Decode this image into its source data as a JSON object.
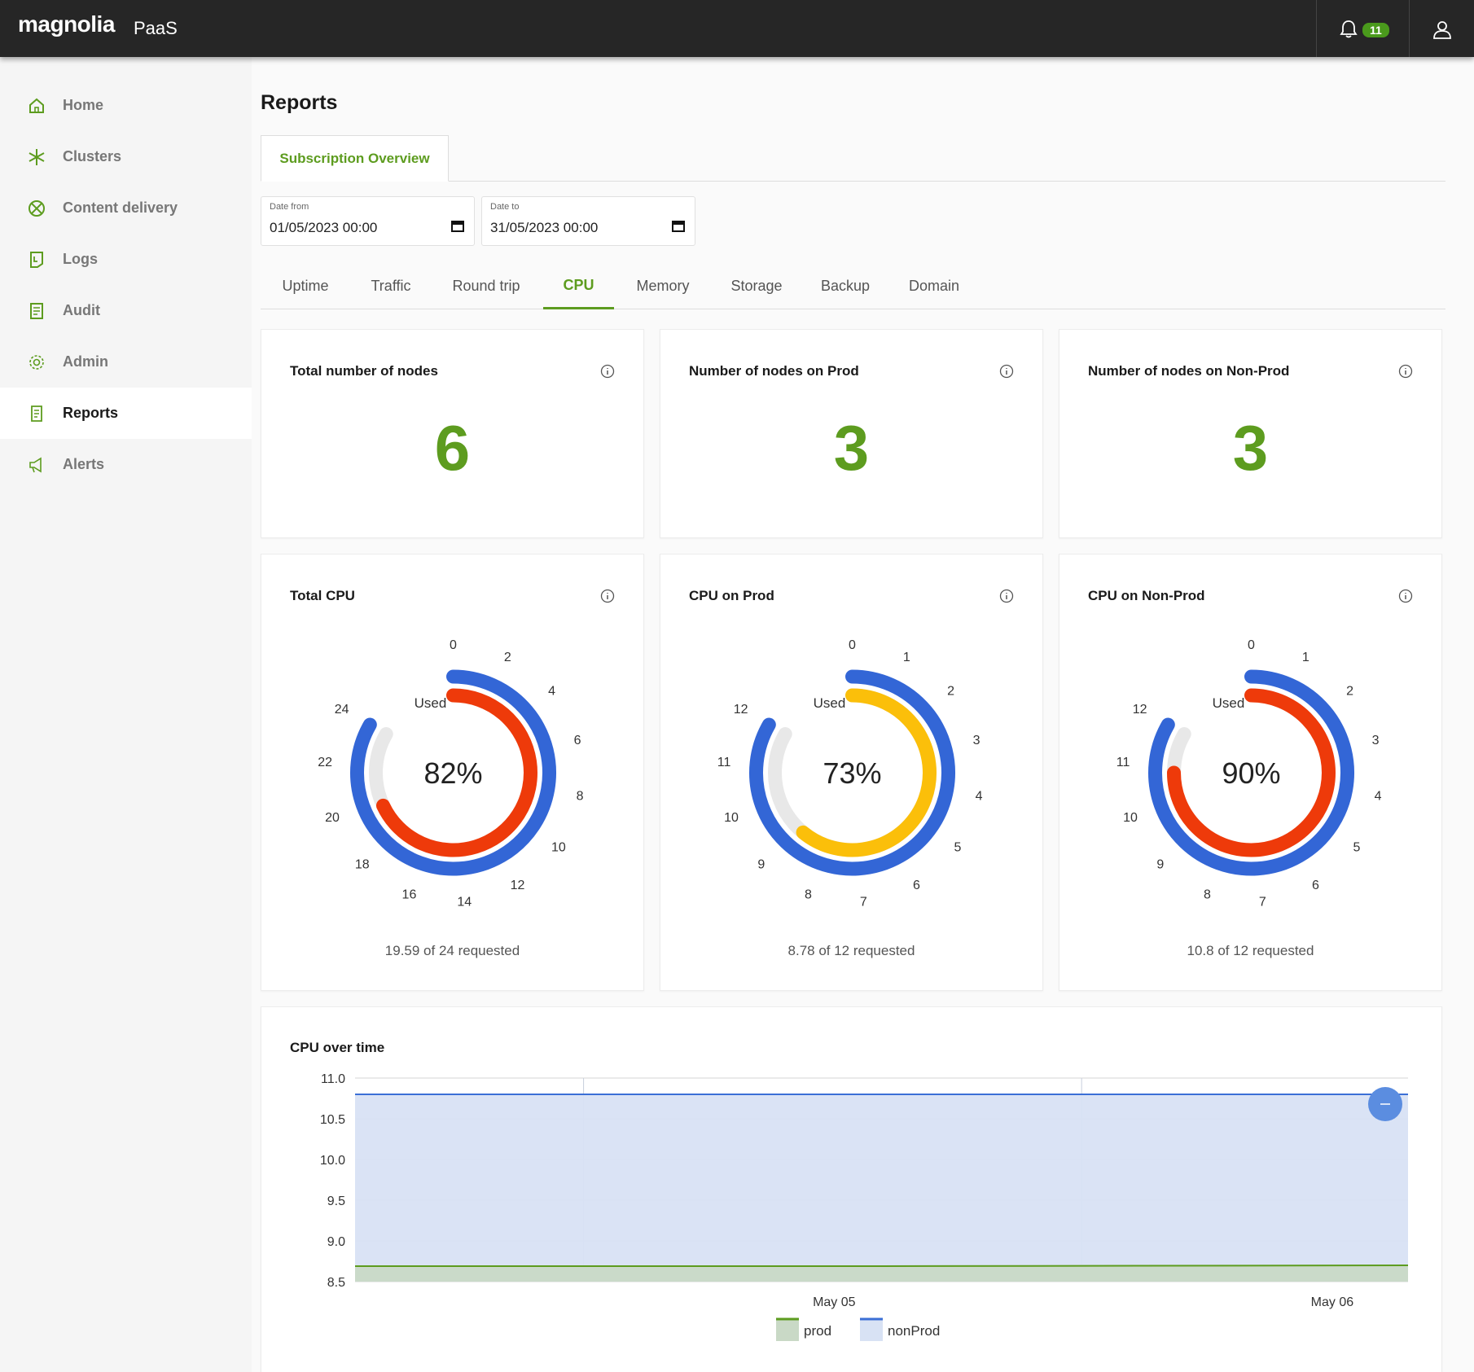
{
  "header": {
    "logo": "magnolia",
    "product": "PaaS",
    "notifications": "11"
  },
  "sidebar": {
    "items": [
      {
        "label": "Home",
        "icon": "home-icon"
      },
      {
        "label": "Clusters",
        "icon": "clusters-icon"
      },
      {
        "label": "Content delivery",
        "icon": "content-delivery-icon"
      },
      {
        "label": "Logs",
        "icon": "logs-icon"
      },
      {
        "label": "Audit",
        "icon": "audit-icon"
      },
      {
        "label": "Admin",
        "icon": "gear-icon"
      },
      {
        "label": "Reports",
        "icon": "reports-icon"
      },
      {
        "label": "Alerts",
        "icon": "megaphone-icon"
      }
    ],
    "active": "Reports"
  },
  "page": {
    "title": "Reports",
    "subtab": "Subscription Overview",
    "date_from": {
      "label": "Date from",
      "value": "01/05/2023 00:00"
    },
    "date_to": {
      "label": "Date to",
      "value": "31/05/2023 00:00"
    },
    "tabs": [
      "Uptime",
      "Traffic",
      "Round trip",
      "CPU",
      "Memory",
      "Storage",
      "Backup",
      "Domain"
    ],
    "active_tab": "CPU"
  },
  "nodes": [
    {
      "title": "Total number of nodes",
      "value": "6"
    },
    {
      "title": "Number of nodes on Prod",
      "value": "3"
    },
    {
      "title": "Number of nodes on Non-Prod",
      "value": "3"
    }
  ],
  "gauges": [
    {
      "title": "Total CPU",
      "percent": "82%",
      "used_label": "Used",
      "caption": "19.59 of 24 requested",
      "max": 24,
      "used": 19.59,
      "ticks": [
        "0",
        "2",
        "4",
        "6",
        "8",
        "10",
        "12",
        "14",
        "16",
        "18",
        "20",
        "22",
        "24"
      ],
      "used_color": "#ee3a0a"
    },
    {
      "title": "CPU on Prod",
      "percent": "73%",
      "used_label": "Used",
      "caption": "8.78 of 12 requested",
      "max": 12,
      "used": 8.78,
      "ticks": [
        "0",
        "1",
        "2",
        "3",
        "4",
        "5",
        "6",
        "7",
        "8",
        "9",
        "10",
        "11",
        "12"
      ],
      "used_color": "#fbbf0a"
    },
    {
      "title": "CPU on Non-Prod",
      "percent": "90%",
      "used_label": "Used",
      "caption": "10.8 of 12 requested",
      "max": 12,
      "used": 10.8,
      "ticks": [
        "0",
        "1",
        "2",
        "3",
        "4",
        "5",
        "6",
        "7",
        "8",
        "9",
        "10",
        "11",
        "12"
      ],
      "used_color": "#ee3a0a"
    }
  ],
  "chart_data": {
    "type": "area",
    "title": "CPU over time",
    "y_ticks": [
      "11.0",
      "10.5",
      "10.0",
      "9.5",
      "9.0",
      "8.5"
    ],
    "ylim": [
      8.5,
      11.0
    ],
    "x_ticks": [
      "May 05",
      "May 06"
    ],
    "series": [
      {
        "name": "nonProd",
        "color": "#3b6fd6",
        "fill": "#d8e2f4",
        "values": [
          10.8,
          10.8,
          10.8
        ]
      },
      {
        "name": "prod",
        "color": "#5d9c1f",
        "fill": "#c9d9c6",
        "values": [
          8.69,
          8.69,
          8.7
        ]
      }
    ],
    "legend": [
      "prod",
      "nonProd"
    ],
    "legend_position": "bottom",
    "grid": true
  }
}
